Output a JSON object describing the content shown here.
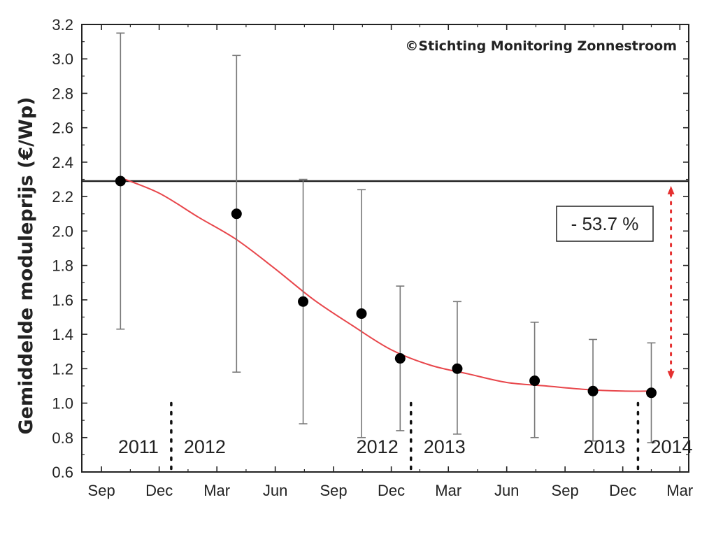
{
  "chart_data": {
    "type": "scatter",
    "title": "",
    "xlabel": "",
    "ylabel": "Gemiddelde moduleprijs (€/Wp)",
    "credit": "©Stichting Monitoring Zonnestroom",
    "xlim": [
      "2011-08-01",
      "2014-03-15"
    ],
    "ylim": [
      0.6,
      3.2
    ],
    "y_ticks": [
      "0.6",
      "0.8",
      "1.0",
      "1.2",
      "1.4",
      "1.6",
      "1.8",
      "2.0",
      "2.2",
      "2.4",
      "2.6",
      "2.8",
      "3.0",
      "3.2"
    ],
    "x_ticks": [
      {
        "date": "2011-09-01",
        "label": "Sep"
      },
      {
        "date": "2011-12-01",
        "label": "Dec"
      },
      {
        "date": "2012-03-01",
        "label": "Mar"
      },
      {
        "date": "2012-06-01",
        "label": "Jun"
      },
      {
        "date": "2012-09-01",
        "label": "Sep"
      },
      {
        "date": "2012-12-01",
        "label": "Dec"
      },
      {
        "date": "2013-03-01",
        "label": "Mar"
      },
      {
        "date": "2013-06-01",
        "label": "Jun"
      },
      {
        "date": "2013-09-01",
        "label": "Sep"
      },
      {
        "date": "2013-12-01",
        "label": "Dec"
      },
      {
        "date": "2014-03-01",
        "label": "Mar"
      }
    ],
    "points": [
      {
        "date": "2011-10-01",
        "y": 2.29,
        "low": 1.43,
        "high": 3.15
      },
      {
        "date": "2012-04-01",
        "y": 2.1,
        "low": 1.18,
        "high": 3.02
      },
      {
        "date": "2012-07-15",
        "y": 1.59,
        "low": 0.88,
        "high": 2.3
      },
      {
        "date": "2012-10-15",
        "y": 1.52,
        "low": 0.8,
        "high": 2.24
      },
      {
        "date": "2012-12-15",
        "y": 1.26,
        "low": 0.84,
        "high": 1.68
      },
      {
        "date": "2013-03-15",
        "y": 1.2,
        "low": 0.82,
        "high": 1.59
      },
      {
        "date": "2013-07-15",
        "y": 1.13,
        "low": 0.8,
        "high": 1.47
      },
      {
        "date": "2013-10-15",
        "y": 1.07,
        "low": 0.78,
        "high": 1.37
      },
      {
        "date": "2014-01-15",
        "y": 1.06,
        "low": 0.77,
        "high": 1.35
      }
    ],
    "fit_curve": [
      {
        "date": "2011-10-01",
        "y": 2.31
      },
      {
        "date": "2011-12-01",
        "y": 2.22
      },
      {
        "date": "2012-02-01",
        "y": 2.08
      },
      {
        "date": "2012-04-01",
        "y": 1.95
      },
      {
        "date": "2012-06-01",
        "y": 1.78
      },
      {
        "date": "2012-08-01",
        "y": 1.6
      },
      {
        "date": "2012-10-01",
        "y": 1.45
      },
      {
        "date": "2012-12-01",
        "y": 1.31
      },
      {
        "date": "2013-02-01",
        "y": 1.22
      },
      {
        "date": "2013-04-01",
        "y": 1.17
      },
      {
        "date": "2013-06-01",
        "y": 1.12
      },
      {
        "date": "2013-08-01",
        "y": 1.1
      },
      {
        "date": "2013-10-01",
        "y": 1.08
      },
      {
        "date": "2013-12-01",
        "y": 1.07
      },
      {
        "date": "2014-01-15",
        "y": 1.07
      }
    ],
    "reference_line": {
      "y": 2.29
    },
    "reduction_label": "- 53.7 %",
    "reduction_arrow": {
      "date": "2014-02-15",
      "from": 2.25,
      "to": 1.15
    },
    "year_boundaries": [
      {
        "date": "2011-12-20",
        "left": "2011",
        "right": "2012"
      },
      {
        "date": "2013-01-01",
        "left": "2012",
        "right": "2013"
      },
      {
        "date": "2013-12-25",
        "left": "2013",
        "right": "2014"
      }
    ],
    "colors": {
      "points": "#000000",
      "error_bars": "#777777",
      "fit": "#e8464b",
      "reference": "#222222",
      "arrow": "#e53030"
    },
    "grid": false,
    "legend": "none"
  }
}
